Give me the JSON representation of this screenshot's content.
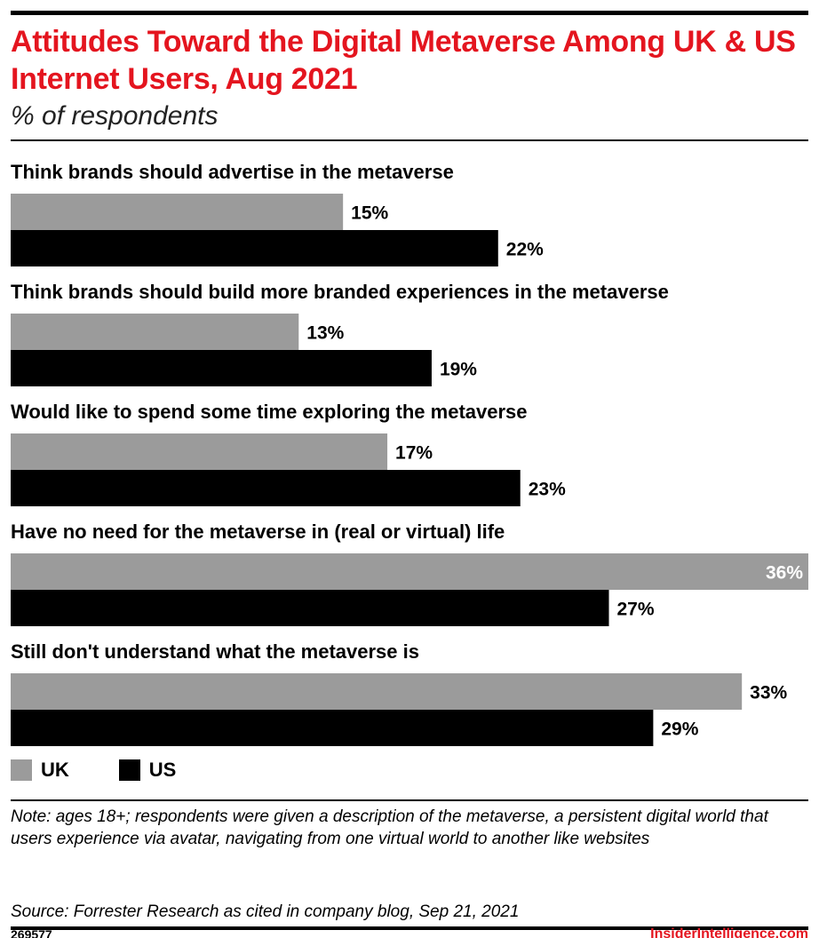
{
  "header": {
    "title": "Attitudes Toward the Digital Metaverse Among UK & US Internet Users, Aug 2021",
    "subtitle": "% of respondents"
  },
  "colors": {
    "uk": "#9b9b9b",
    "us": "#000000",
    "accent": "#e4151f"
  },
  "chart_data": {
    "type": "bar",
    "orientation": "horizontal",
    "title": "Attitudes Toward the Digital Metaverse Among UK & US Internet Users, Aug 2021",
    "subtitle": "% of respondents",
    "categories": [
      "Think brands should advertise in the metaverse",
      "Think brands should build more branded experiences in the metaverse",
      "Would like to spend some time exploring the metaverse",
      "Have no need for the metaverse in (real or virtual) life",
      "Still don't understand what the metaverse is"
    ],
    "series": [
      {
        "name": "UK",
        "values": [
          15,
          13,
          17,
          36,
          33
        ]
      },
      {
        "name": "US",
        "values": [
          22,
          19,
          23,
          27,
          29
        ]
      }
    ],
    "value_suffix": "%",
    "xlim": [
      0,
      36
    ],
    "grid": false,
    "legend": "bottom-left"
  },
  "legend": {
    "uk_label": "UK",
    "us_label": "US"
  },
  "footer": {
    "note": "Note: ages 18+; respondents were given a description of the metaverse, a persistent digital world that users experience via avatar, navigating from one virtual world to another like websites",
    "source": "Source: Forrester Research as cited in company blog, Sep 21, 2021",
    "chart_id": "269577",
    "brand": "InsiderIntelligence.com"
  }
}
